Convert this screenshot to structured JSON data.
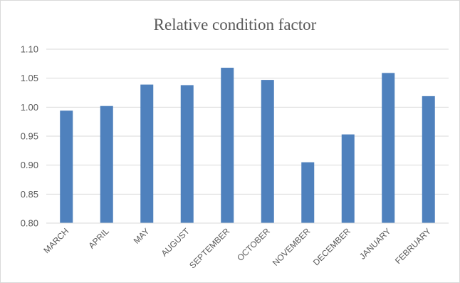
{
  "chart_data": {
    "type": "bar",
    "title": "Relative condition factor",
    "xlabel": "",
    "ylabel": "",
    "categories": [
      "MARCH",
      "APRIL",
      "MAY",
      "AUGUST",
      "SEPTEMBER",
      "OCTOBER",
      "NOVEMBER",
      "DECEMBER",
      "JANUARY",
      "FEBRUARY"
    ],
    "values": [
      0.994,
      1.002,
      1.039,
      1.038,
      1.068,
      1.047,
      0.905,
      0.953,
      1.059,
      1.019
    ],
    "ylim": [
      0.8,
      1.1
    ],
    "yticks": [
      "0.80",
      "0.85",
      "0.90",
      "0.95",
      "1.00",
      "1.05",
      "1.10"
    ],
    "grid": true,
    "legend": "none",
    "bar_color": "#4f81bd"
  }
}
